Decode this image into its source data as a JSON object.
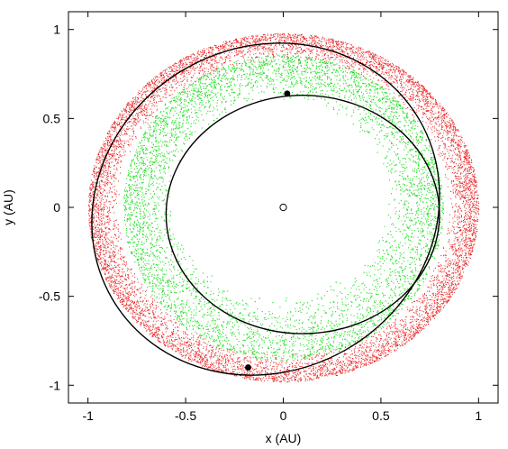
{
  "chart_data": {
    "type": "scatter",
    "title": "",
    "xlabel": "x (AU)",
    "ylabel": "y (AU)",
    "xlim": [
      -1.1,
      1.1
    ],
    "ylim": [
      -1.1,
      1.1
    ],
    "xticks": [
      {
        "value": -1,
        "label": "-1"
      },
      {
        "value": -0.5,
        "label": "-0.5"
      },
      {
        "value": 0,
        "label": "0"
      },
      {
        "value": 0.5,
        "label": "0.5"
      },
      {
        "value": 1,
        "label": "1"
      }
    ],
    "yticks": [
      {
        "value": -1,
        "label": "-1"
      },
      {
        "value": -0.5,
        "label": "-0.5"
      },
      {
        "value": 0,
        "label": "0"
      },
      {
        "value": 0.5,
        "label": "0.5"
      },
      {
        "value": 1,
        "label": "1"
      }
    ],
    "grid": false,
    "legend": "none",
    "point_series": [
      {
        "color": "#e8292a",
        "ring_x_range": [
          -1.0,
          1.0
        ],
        "ring_y_range": [
          -0.98,
          0.98
        ],
        "inner_x_range": [
          -0.84,
          0.84
        ],
        "inner_y_range": [
          -0.82,
          0.82
        ]
      },
      {
        "color": "#2fe02f",
        "ring_x_range": [
          -0.82,
          0.82
        ],
        "ring_y_range": [
          -0.86,
          0.86
        ],
        "inner_x_range": [
          -0.56,
          0.52
        ],
        "inner_y_range": [
          -0.5,
          0.6
        ]
      }
    ],
    "orbits": [
      {
        "color": "#000000",
        "center": [
          -0.09,
          -0.01
        ],
        "semi_x": 0.91,
        "semi_y": 0.91,
        "rotation_deg": -30
      },
      {
        "color": "#000000",
        "center": [
          0.1,
          -0.04
        ],
        "semi_x": 0.7,
        "semi_y": 0.67,
        "rotation_deg": 0
      }
    ],
    "bodies": [
      {
        "x": 0.02,
        "y": 0.64,
        "style": "filled"
      },
      {
        "x": -0.18,
        "y": -0.9,
        "style": "filled"
      },
      {
        "x": 0.0,
        "y": 0.0,
        "style": "open"
      }
    ]
  }
}
